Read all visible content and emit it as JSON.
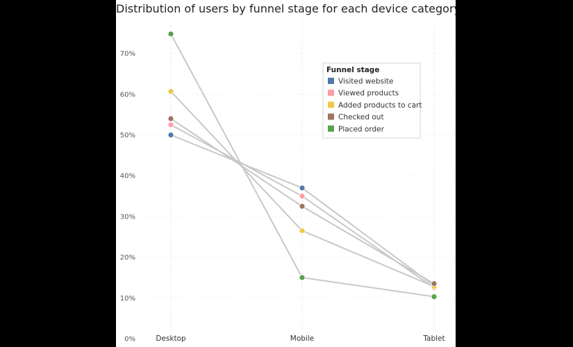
{
  "chart_data": {
    "type": "line",
    "title": "Distribution of users by funnel stage for each device category",
    "categories": [
      "Desktop",
      "Mobile",
      "Tablet"
    ],
    "y_ticks": [
      "0%",
      "10%",
      "20%",
      "30%",
      "40%",
      "50%",
      "60%",
      "70%"
    ],
    "ylim": [
      0,
      0.8
    ],
    "grid": true,
    "legend": {
      "title": "Funnel stage",
      "placement": "top-right"
    },
    "series": [
      {
        "name": "Visited website",
        "color": "#4e79a7",
        "values": [
          0.5,
          0.37,
          0.13
        ]
      },
      {
        "name": "Viewed products",
        "color": "#ff9da7",
        "values": [
          0.525,
          0.35,
          0.125
        ]
      },
      {
        "name": "Added products to cart",
        "color": "#edc948",
        "values": [
          0.607,
          0.265,
          0.128
        ]
      },
      {
        "name": "Checked out",
        "color": "#9c755f",
        "values": [
          0.54,
          0.325,
          0.135
        ]
      },
      {
        "name": "Placed order",
        "color": "#59a14f",
        "values": [
          0.748,
          0.15,
          0.103
        ]
      }
    ]
  }
}
